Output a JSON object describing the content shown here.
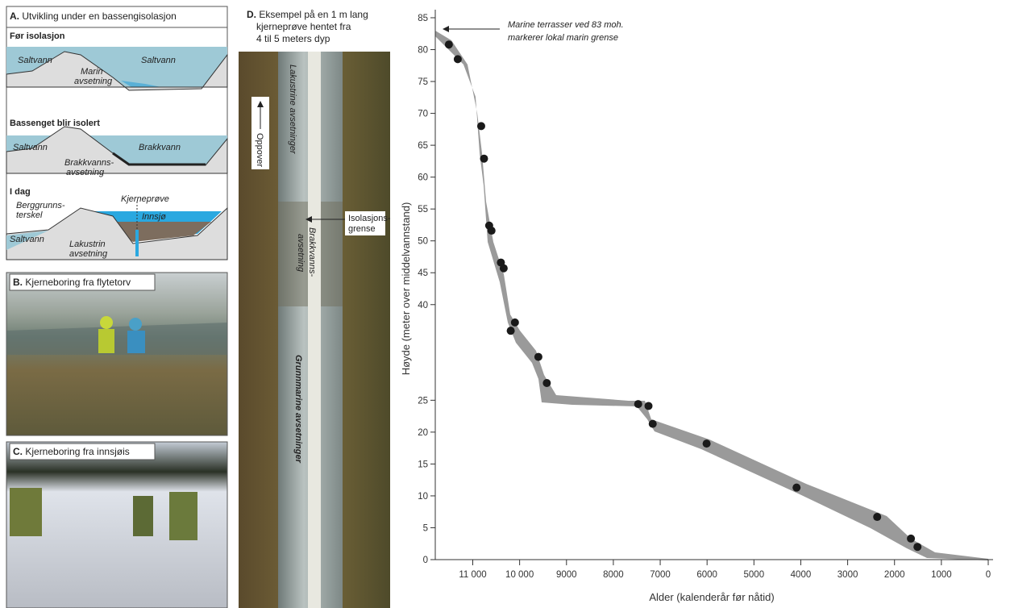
{
  "panels": {
    "a": {
      "label": "A.",
      "title": "Utvikling under en bassengisolasjon",
      "step1": {
        "heading": "Før isolasjon",
        "left": "Saltvann",
        "right": "Saltvann",
        "deposit": [
          "Marin",
          "avsetning"
        ]
      },
      "step2": {
        "heading": "Bassenget blir isolert",
        "left": "Saltvann",
        "right": "Brakkvann",
        "deposit": [
          "Brakkvanns-",
          "avsetning"
        ]
      },
      "step3": {
        "heading": "I dag",
        "sill": [
          "Berggrunns-",
          "terskel"
        ],
        "core": "Kjerneprøve",
        "lake": "Innsjø",
        "left": "Saltvann",
        "deposit": [
          "Lakustrin",
          "avsetning"
        ]
      }
    },
    "b": {
      "label": "B.",
      "title": "Kjerneboring fra flytetorv"
    },
    "c": {
      "label": "C.",
      "title": "Kjerneboring fra innsjøis"
    },
    "d": {
      "label": "D.",
      "lines": [
        "Eksempel på en 1 m lang",
        "kjerneprøve hentet fra",
        "4 til 5 meters dyp"
      ],
      "up": "Oppover",
      "boundary": [
        "Isolasjons-",
        "grense"
      ],
      "lacustrine": "Lakustrine avsetninger",
      "brackish": [
        "Brakkvanns-",
        "avsetning"
      ],
      "marine": "Grunnmarine avsetninger"
    }
  },
  "chart_data": {
    "type": "scatter",
    "annotation": [
      "Marine terrasser ved 83 moh.",
      "markerer lokal marin grense"
    ],
    "x_label": "Alder (kalenderår før nåtid)",
    "y_label": "Høyde (meter over middelvannstand)",
    "x": [
      11510,
      11320,
      10820,
      10760,
      10650,
      10600,
      10400,
      10340,
      10100,
      10190,
      9600,
      9420,
      7470,
      7250,
      7160,
      6010,
      4090,
      2370,
      1650,
      1510
    ],
    "values": [
      80.8,
      78.5,
      68.0,
      62.9,
      52.4,
      51.6,
      46.6,
      45.7,
      37.2,
      35.9,
      31.8,
      27.7,
      24.4,
      24.1,
      21.3,
      18.2,
      11.3,
      6.7,
      3.3,
      2.0
    ],
    "color": "#1a1a1a",
    "xlim": [
      11800,
      0
    ],
    "xticks": [
      {
        "value": 11000,
        "label": "11 000"
      },
      {
        "value": 10000,
        "label": "10 000"
      },
      9000,
      8000,
      7000,
      6000,
      5000,
      4000,
      3000,
      2000,
      1000,
      0
    ],
    "ylim": [
      0,
      85
    ],
    "yticks": [
      0,
      5,
      10,
      15,
      20,
      25,
      40,
      45,
      50,
      55,
      60,
      65,
      70,
      75,
      80,
      85
    ]
  }
}
